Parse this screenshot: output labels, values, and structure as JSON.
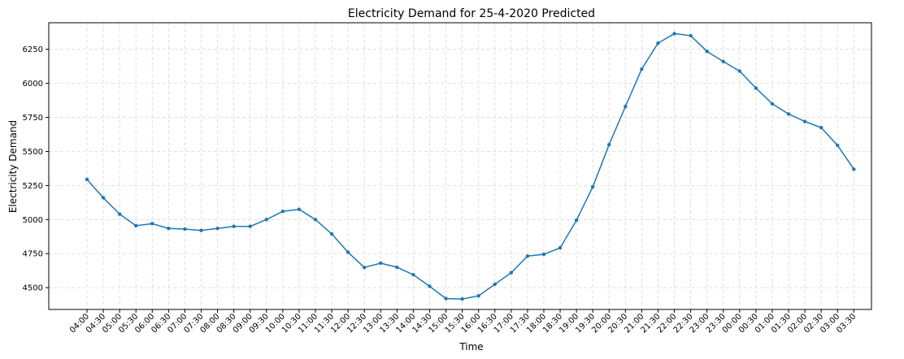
{
  "chart_data": {
    "type": "line",
    "title": "Electricity Demand for 25-4-2020 Predicted",
    "xlabel": "Time",
    "ylabel": "Electricity Demand",
    "categories": [
      "04:00",
      "04:30",
      "05:00",
      "05:30",
      "06:00",
      "06:30",
      "07:00",
      "07:30",
      "08:00",
      "08:30",
      "09:00",
      "09:30",
      "10:00",
      "10:30",
      "11:00",
      "11:30",
      "12:00",
      "12:30",
      "13:00",
      "13:30",
      "14:00",
      "14:30",
      "15:00",
      "15:30",
      "16:00",
      "16:30",
      "17:00",
      "17:30",
      "18:00",
      "18:30",
      "19:00",
      "19:30",
      "20:00",
      "20:30",
      "21:00",
      "21:30",
      "22:00",
      "22:30",
      "23:00",
      "23:30",
      "00:00",
      "00:30",
      "01:00",
      "01:30",
      "02:00",
      "02:30",
      "03:00",
      "03:30"
    ],
    "series": [
      {
        "values": [
          5295,
          5160,
          5040,
          4955,
          4970,
          4935,
          4930,
          4920,
          4935,
          4950,
          4950,
          5000,
          5060,
          5075,
          5000,
          4895,
          4760,
          4648,
          4680,
          4650,
          4595,
          4510,
          4420,
          4417,
          4440,
          4525,
          4610,
          4732,
          4745,
          4792,
          4995,
          5240,
          5550,
          5830,
          6105,
          6295,
          6365,
          6350,
          6235,
          6160,
          6090,
          5965,
          5850,
          5775,
          5720,
          5675,
          5545,
          5370
        ],
        "color": "#1f77b4"
      }
    ],
    "yticks": [
      4500,
      4750,
      5000,
      5250,
      5500,
      5750,
      6000,
      6250
    ],
    "ylim": [
      4340,
      6445
    ],
    "grid": true,
    "legend": "none"
  }
}
